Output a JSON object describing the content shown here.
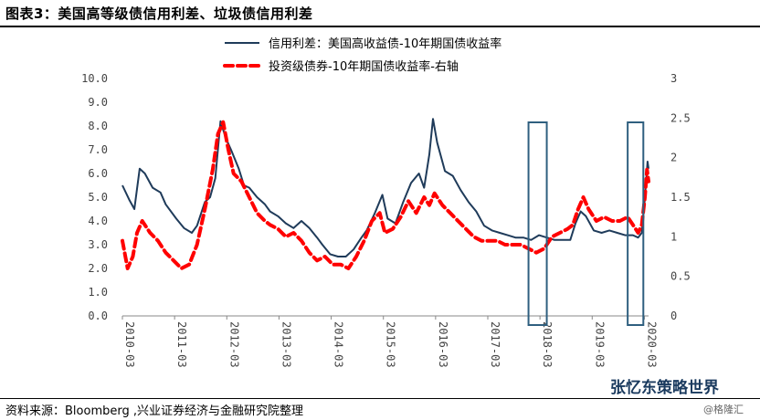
{
  "title": "图表3：美国高等级债信用利差、垃圾债信用利差",
  "source": "资料来源：Bloomberg ,兴业证券经济与金融研究院整理",
  "watermark": "张忆东策略世界",
  "watermark2": "@格隆汇",
  "chart_data": {
    "type": "line",
    "title": "",
    "legend_position": "top-center",
    "grid": false,
    "x_categories": [
      "2010-03",
      "2011-03",
      "2012-03",
      "2013-03",
      "2014-03",
      "2015-03",
      "2016-03",
      "2017-03",
      "2018-03",
      "2019-03",
      "2020-03"
    ],
    "y_left": {
      "min": 0,
      "max": 10,
      "ticks": [
        "0.0",
        "1.0",
        "2.0",
        "3.0",
        "4.0",
        "5.0",
        "6.0",
        "7.0",
        "8.0",
        "9.0",
        "10.0"
      ]
    },
    "y_right": {
      "min": 0,
      "max": 3,
      "ticks": [
        "0",
        "0.5",
        "1",
        "1.5",
        "2",
        "2.5",
        "3"
      ]
    },
    "series": [
      {
        "name": "信用利差：美国高收益债-10年期国债收益率",
        "axis": "left",
        "color": "#1f3b5a",
        "style": "solid",
        "points": [
          [
            2010.17,
            5.5
          ],
          [
            2010.3,
            4.9
          ],
          [
            2010.4,
            4.5
          ],
          [
            2010.5,
            6.2
          ],
          [
            2010.6,
            6.0
          ],
          [
            2010.75,
            5.4
          ],
          [
            2010.9,
            5.2
          ],
          [
            2011.0,
            4.7
          ],
          [
            2011.2,
            4.1
          ],
          [
            2011.35,
            3.7
          ],
          [
            2011.5,
            3.5
          ],
          [
            2011.6,
            3.8
          ],
          [
            2011.75,
            4.8
          ],
          [
            2011.85,
            5.0
          ],
          [
            2011.95,
            5.8
          ],
          [
            2012.05,
            8.2
          ],
          [
            2012.15,
            7.5
          ],
          [
            2012.25,
            7.0
          ],
          [
            2012.4,
            6.2
          ],
          [
            2012.5,
            5.5
          ],
          [
            2012.6,
            5.4
          ],
          [
            2012.75,
            5.0
          ],
          [
            2012.9,
            4.7
          ],
          [
            2013.0,
            4.4
          ],
          [
            2013.15,
            4.2
          ],
          [
            2013.3,
            3.9
          ],
          [
            2013.45,
            3.7
          ],
          [
            2013.6,
            4.0
          ],
          [
            2013.75,
            3.7
          ],
          [
            2013.9,
            3.3
          ],
          [
            2014.0,
            3.0
          ],
          [
            2014.15,
            2.6
          ],
          [
            2014.3,
            2.5
          ],
          [
            2014.45,
            2.5
          ],
          [
            2014.6,
            2.8
          ],
          [
            2014.75,
            3.3
          ],
          [
            2014.85,
            3.6
          ],
          [
            2015.0,
            4.3
          ],
          [
            2015.15,
            5.1
          ],
          [
            2015.25,
            4.1
          ],
          [
            2015.4,
            3.9
          ],
          [
            2015.55,
            4.8
          ],
          [
            2015.7,
            5.6
          ],
          [
            2015.85,
            6.0
          ],
          [
            2015.95,
            5.4
          ],
          [
            2016.05,
            6.8
          ],
          [
            2016.12,
            8.3
          ],
          [
            2016.2,
            7.3
          ],
          [
            2016.35,
            6.1
          ],
          [
            2016.5,
            5.9
          ],
          [
            2016.65,
            5.3
          ],
          [
            2016.8,
            4.8
          ],
          [
            2016.95,
            4.4
          ],
          [
            2017.1,
            3.8
          ],
          [
            2017.25,
            3.6
          ],
          [
            2017.4,
            3.5
          ],
          [
            2017.55,
            3.4
          ],
          [
            2017.7,
            3.3
          ],
          [
            2017.85,
            3.3
          ],
          [
            2018.0,
            3.2
          ],
          [
            2018.15,
            3.4
          ],
          [
            2018.3,
            3.3
          ],
          [
            2018.45,
            3.2
          ],
          [
            2018.6,
            3.2
          ],
          [
            2018.75,
            3.2
          ],
          [
            2018.85,
            3.9
          ],
          [
            2018.95,
            4.4
          ],
          [
            2019.05,
            4.2
          ],
          [
            2019.2,
            3.6
          ],
          [
            2019.35,
            3.5
          ],
          [
            2019.5,
            3.6
          ],
          [
            2019.65,
            3.5
          ],
          [
            2019.8,
            3.4
          ],
          [
            2019.95,
            3.4
          ],
          [
            2020.05,
            3.3
          ],
          [
            2020.12,
            3.5
          ],
          [
            2020.18,
            5.0
          ],
          [
            2020.23,
            6.5
          ],
          [
            2020.25,
            6.2
          ]
        ]
      },
      {
        "name": "投资级债券-10年期国债收益率-右轴",
        "axis": "right",
        "color": "#ff0000",
        "style": "dashed",
        "points": [
          [
            2010.17,
            0.95
          ],
          [
            2010.27,
            0.6
          ],
          [
            2010.37,
            0.75
          ],
          [
            2010.45,
            1.05
          ],
          [
            2010.55,
            1.2
          ],
          [
            2010.7,
            1.05
          ],
          [
            2010.85,
            0.95
          ],
          [
            2011.0,
            0.8
          ],
          [
            2011.15,
            0.7
          ],
          [
            2011.3,
            0.6
          ],
          [
            2011.45,
            0.65
          ],
          [
            2011.6,
            0.9
          ],
          [
            2011.75,
            1.35
          ],
          [
            2011.9,
            1.85
          ],
          [
            2012.0,
            2.3
          ],
          [
            2012.1,
            2.45
          ],
          [
            2012.2,
            2.1
          ],
          [
            2012.3,
            1.8
          ],
          [
            2012.45,
            1.7
          ],
          [
            2012.6,
            1.5
          ],
          [
            2012.75,
            1.3
          ],
          [
            2012.9,
            1.2
          ],
          [
            2013.0,
            1.15
          ],
          [
            2013.15,
            1.1
          ],
          [
            2013.3,
            1.0
          ],
          [
            2013.45,
            1.05
          ],
          [
            2013.6,
            0.95
          ],
          [
            2013.75,
            0.8
          ],
          [
            2013.9,
            0.7
          ],
          [
            2014.05,
            0.75
          ],
          [
            2014.2,
            0.65
          ],
          [
            2014.35,
            0.65
          ],
          [
            2014.5,
            0.6
          ],
          [
            2014.65,
            0.75
          ],
          [
            2014.8,
            0.95
          ],
          [
            2014.95,
            1.2
          ],
          [
            2015.1,
            1.3
          ],
          [
            2015.2,
            1.05
          ],
          [
            2015.35,
            1.1
          ],
          [
            2015.5,
            1.25
          ],
          [
            2015.65,
            1.45
          ],
          [
            2015.8,
            1.3
          ],
          [
            2015.95,
            1.5
          ],
          [
            2016.05,
            1.4
          ],
          [
            2016.15,
            1.55
          ],
          [
            2016.3,
            1.4
          ],
          [
            2016.45,
            1.3
          ],
          [
            2016.6,
            1.2
          ],
          [
            2016.75,
            1.1
          ],
          [
            2016.9,
            1.0
          ],
          [
            2017.05,
            0.95
          ],
          [
            2017.2,
            0.95
          ],
          [
            2017.35,
            0.95
          ],
          [
            2017.5,
            0.9
          ],
          [
            2017.65,
            0.9
          ],
          [
            2017.8,
            0.9
          ],
          [
            2017.95,
            0.85
          ],
          [
            2018.1,
            0.8
          ],
          [
            2018.25,
            0.85
          ],
          [
            2018.4,
            1.0
          ],
          [
            2018.55,
            1.05
          ],
          [
            2018.7,
            1.1
          ],
          [
            2018.8,
            1.15
          ],
          [
            2018.9,
            1.35
          ],
          [
            2019.0,
            1.5
          ],
          [
            2019.1,
            1.35
          ],
          [
            2019.25,
            1.2
          ],
          [
            2019.4,
            1.25
          ],
          [
            2019.55,
            1.2
          ],
          [
            2019.7,
            1.2
          ],
          [
            2019.85,
            1.25
          ],
          [
            2019.95,
            1.15
          ],
          [
            2020.05,
            1.05
          ],
          [
            2020.12,
            1.15
          ],
          [
            2020.18,
            1.5
          ],
          [
            2020.22,
            1.85
          ],
          [
            2020.25,
            1.7
          ]
        ]
      }
    ],
    "annotations": [
      {
        "type": "box",
        "x_from": 2017.95,
        "x_to": 2018.3,
        "covers": "full y range"
      },
      {
        "type": "box",
        "x_from": 2019.85,
        "x_to": 2020.15,
        "covers": "full y range"
      }
    ]
  },
  "colors": {
    "hy": "#1f3b5a",
    "ig": "#ff0000",
    "box": "#2f5f7f"
  }
}
